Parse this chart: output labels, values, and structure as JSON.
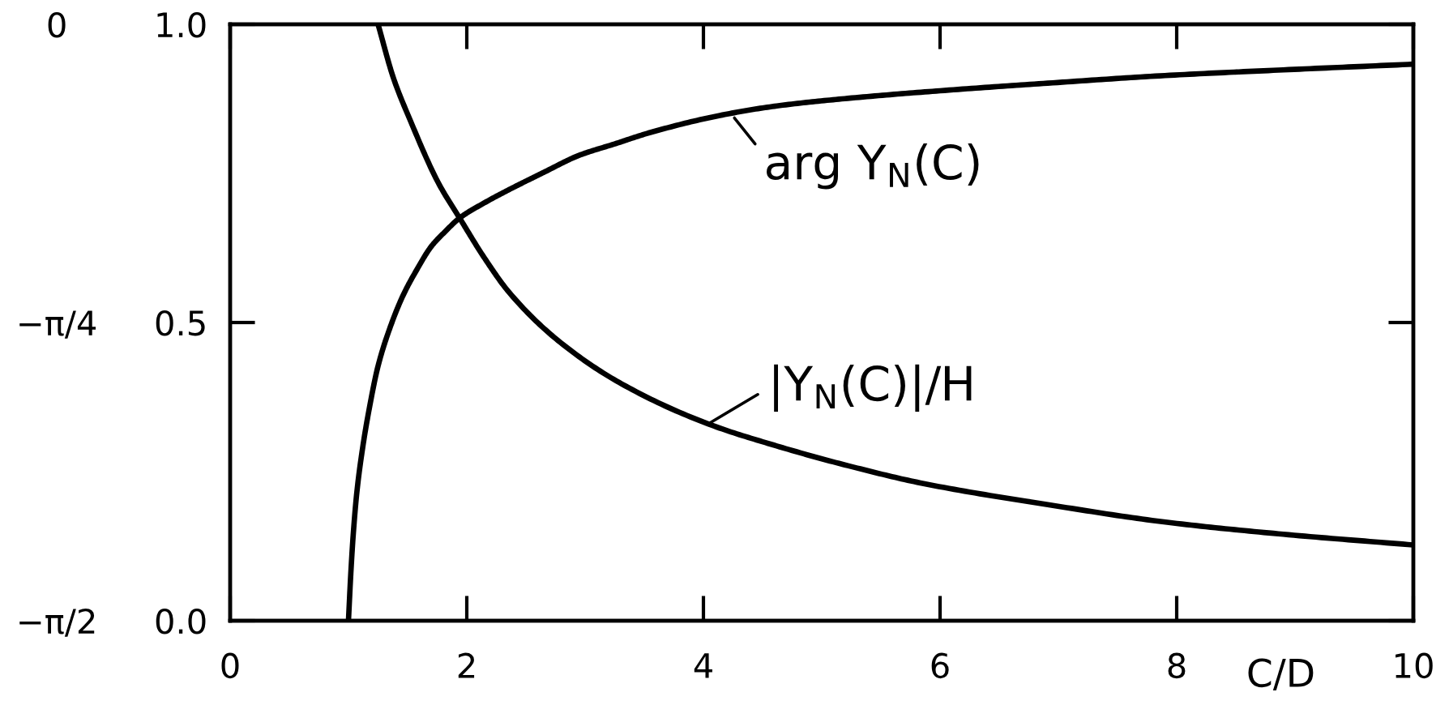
{
  "chart_data": {
    "type": "line",
    "xlabel": "C/D",
    "xlim": [
      0,
      10
    ],
    "xticks": [
      0,
      2,
      4,
      6,
      8,
      10
    ],
    "ylim": [
      0,
      1
    ],
    "yticks": [
      {
        "value": 0,
        "label": "0.0"
      },
      0.5,
      {
        "value": 1,
        "label": "1.0"
      }
    ],
    "y2lim": [
      -1.5708,
      0
    ],
    "y2ticks": [
      0,
      {
        "value": -0.7854,
        "label": "−π/4"
      },
      {
        "value": -1.5708,
        "label": "−π/2"
      }
    ],
    "series": [
      {
        "color": "#000000",
        "axis": "y2",
        "x": [
          1.0,
          1.02,
          1.04,
          1.07,
          1.12,
          1.18,
          1.25,
          1.35,
          1.46,
          1.58,
          1.7,
          1.82,
          1.94,
          2.15,
          2.36,
          2.65,
          2.95,
          3.25,
          3.55,
          4.14,
          4.62,
          5.22,
          6.0,
          6.91,
          7.9,
          8.9,
          10.0
        ],
        "values": [
          -1.57,
          -1.445,
          -1.345,
          -1.235,
          -1.115,
          -1.005,
          -0.9,
          -0.8,
          -0.715,
          -0.645,
          -0.585,
          -0.545,
          -0.51,
          -0.47,
          -0.435,
          -0.39,
          -0.345,
          -0.315,
          -0.285,
          -0.24,
          -0.215,
          -0.195,
          -0.175,
          -0.155,
          -0.135,
          -0.12,
          -0.105
        ]
      },
      {
        "color": "#000000",
        "x": [
          1.25,
          1.38,
          1.52,
          1.76,
          1.94,
          2.15,
          2.36,
          2.77,
          3.31,
          4.04,
          4.62,
          5.22,
          5.86,
          6.9,
          7.92,
          8.9,
          10.0
        ],
        "values": [
          1.0,
          0.91,
          0.84,
          0.734,
          0.675,
          0.608,
          0.55,
          0.47,
          0.397,
          0.33,
          0.293,
          0.26,
          0.23,
          0.195,
          0.165,
          0.145,
          0.127
        ]
      }
    ],
    "annotations": [
      {
        "text": "arg Y$_{N}$(C)",
        "x": 4.25,
        "y": 0.846
      },
      {
        "text": "|Y$_{N}$(C)|/H",
        "x": 4.04,
        "y": 0.33
      }
    ],
    "grid": false,
    "marker": "none",
    "line_style": "solid"
  }
}
